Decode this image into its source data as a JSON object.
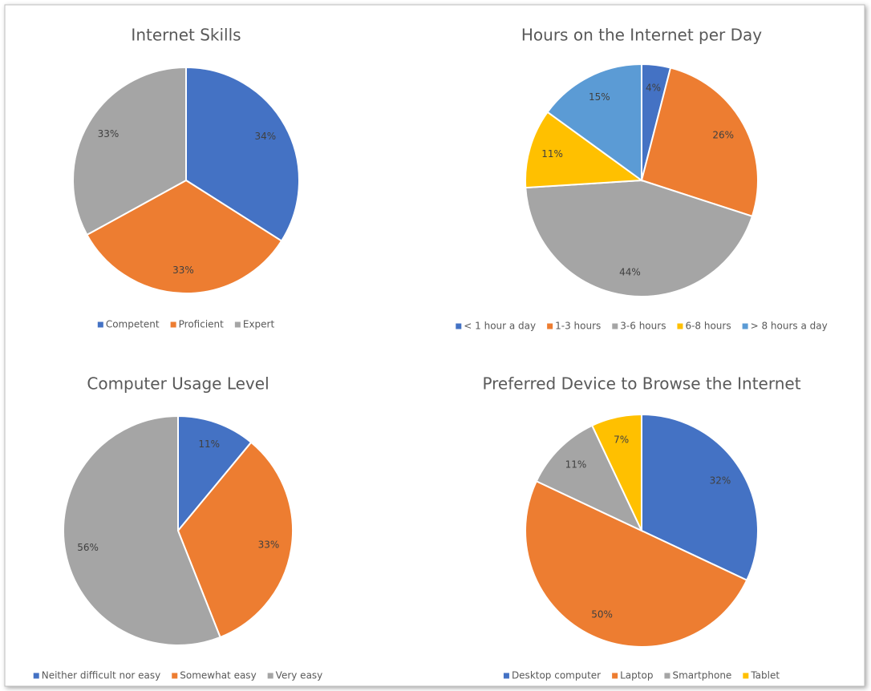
{
  "chart_data": [
    {
      "type": "pie",
      "title": "Internet Skills",
      "categories": [
        "Competent",
        "Proficient",
        "Expert"
      ],
      "values": [
        34,
        33,
        33
      ],
      "value_labels": [
        "34%",
        "33%",
        "33%"
      ],
      "colors": [
        "#4472c4",
        "#ed7d31",
        "#a5a5a5"
      ]
    },
    {
      "type": "pie",
      "title": "Hours on the Internet per Day",
      "categories": [
        "< 1 hour a day",
        "1-3 hours",
        "3-6 hours",
        "6-8 hours",
        "> 8 hours a day"
      ],
      "values": [
        4,
        26,
        44,
        11,
        15
      ],
      "value_labels": [
        "4%",
        "26%",
        "44%",
        "11%",
        "15%"
      ],
      "colors": [
        "#4472c4",
        "#ed7d31",
        "#a5a5a5",
        "#ffc000",
        "#5b9bd5"
      ]
    },
    {
      "type": "pie",
      "title": "Computer Usage Level",
      "categories": [
        "Neither difficult nor easy",
        "Somewhat easy",
        "Very easy"
      ],
      "values": [
        11,
        33,
        56
      ],
      "value_labels": [
        "11%",
        "33%",
        "56%"
      ],
      "colors": [
        "#4472c4",
        "#ed7d31",
        "#a5a5a5"
      ]
    },
    {
      "type": "pie",
      "title": "Preferred Device to Browse the Internet",
      "categories": [
        "Desktop computer",
        "Laptop",
        "Smartphone",
        "Tablet"
      ],
      "values": [
        32,
        50,
        11,
        7
      ],
      "value_labels": [
        "32%",
        "50%",
        "11%",
        "7%"
      ],
      "colors": [
        "#4472c4",
        "#ed7d31",
        "#a5a5a5",
        "#ffc000"
      ]
    }
  ]
}
